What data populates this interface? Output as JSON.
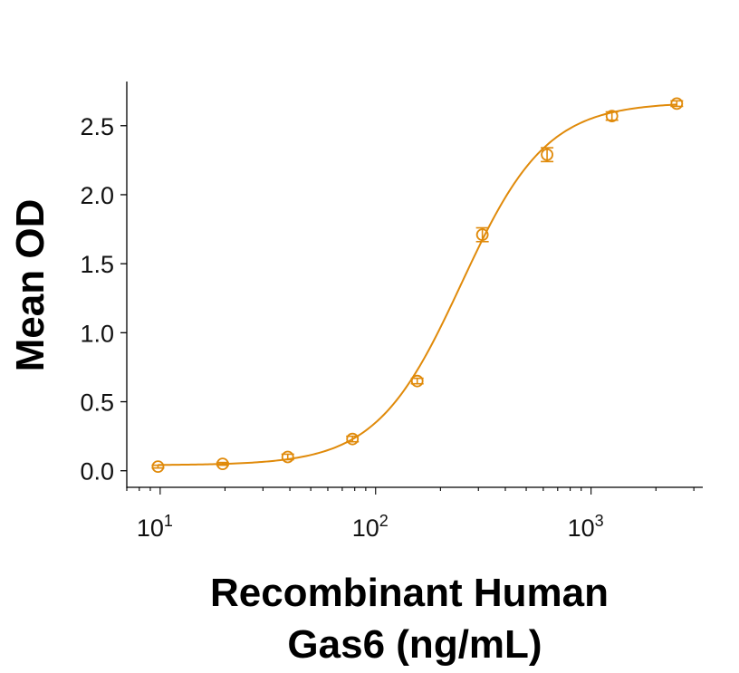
{
  "chart_data": {
    "type": "scatter",
    "title": "",
    "xlabel_lines": [
      "Recombinant Human",
      "Gas6 (ng/mL)"
    ],
    "ylabel": "Mean OD",
    "x_scale": "log",
    "xlim": [
      7,
      3300
    ],
    "ylim": [
      -0.12,
      2.82
    ],
    "grid": false,
    "legend": "none",
    "y_ticks": [
      0.0,
      0.5,
      1.0,
      1.5,
      2.0,
      2.5
    ],
    "y_tick_labels": [
      "0.0",
      "0.5",
      "1.0",
      "1.5",
      "2.0",
      "2.5"
    ],
    "x_major_ticks": [
      10,
      100,
      1000
    ],
    "x_tick_labels": [
      {
        "base": "10",
        "exp": "1"
      },
      {
        "base": "10",
        "exp": "2"
      },
      {
        "base": "10",
        "exp": "3"
      }
    ],
    "series": [
      {
        "color": "#E08A0A",
        "marker": "open-circle",
        "x": [
          9.77,
          19.5,
          39.1,
          78.1,
          156,
          313,
          625,
          1250,
          2500
        ],
        "y": [
          0.03,
          0.05,
          0.1,
          0.23,
          0.65,
          1.71,
          2.29,
          2.57,
          2.66
        ],
        "error": [
          0.01,
          0.01,
          0.02,
          0.02,
          0.02,
          0.05,
          0.05,
          0.03,
          0.02
        ]
      }
    ],
    "fit_curve": {
      "model": "4PL",
      "color": "#E08A0A",
      "bottom": 0.04,
      "top": 2.67,
      "ec50": 250,
      "hill": 2.2
    }
  }
}
